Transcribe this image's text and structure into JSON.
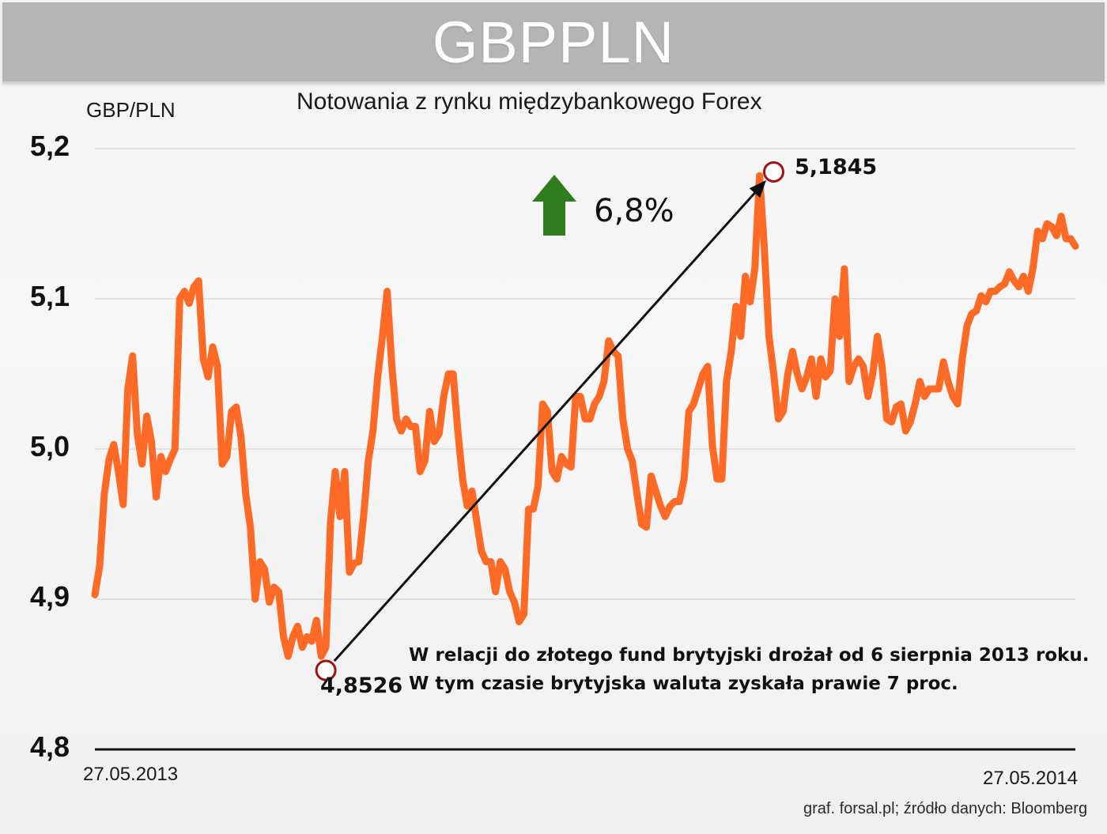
{
  "title": "GBPPLN",
  "subtitle": "Notowania z rynku międzybankowego Forex",
  "source": "graf. forsal.pl;   źródło danych: Bloomberg",
  "colors": {
    "line": "#ff6a26",
    "arrow": "#2f7d1f",
    "marker": "#a01212",
    "grid": "#d0d0d0",
    "axis": "#111111"
  },
  "chart_data": {
    "type": "line",
    "ylabel": "GBP/PLN",
    "ylim": [
      4.8,
      5.2
    ],
    "yticks": [
      "5,2",
      "5,1",
      "5,0",
      "4,9",
      "4,8"
    ],
    "ytick_values": [
      5.2,
      5.1,
      5.0,
      4.9,
      4.8
    ],
    "x_start_label": "27.05.2013",
    "x_end_label": "27.05.2014",
    "x_range": [
      "27.05.2013",
      "27.05.2014"
    ],
    "grid": true,
    "series": [
      {
        "values": [
          4.903,
          4.922,
          4.97,
          4.993,
          5.003,
          4.985,
          4.963,
          5.04,
          5.062,
          5.01,
          4.99,
          5.022,
          5.005,
          4.968,
          4.995,
          4.985,
          4.993,
          5.0,
          5.1,
          5.105,
          5.097,
          5.108,
          5.112,
          5.06,
          5.048,
          5.068,
          5.055,
          4.99,
          4.995,
          5.025,
          5.028,
          5.008,
          4.97,
          4.948,
          4.9,
          4.925,
          4.92,
          4.898,
          4.908,
          4.905,
          4.875,
          4.862,
          4.875,
          4.882,
          4.868,
          4.875,
          4.872,
          4.886,
          4.862,
          4.868,
          4.952,
          4.985,
          4.955,
          4.985,
          4.918,
          4.924,
          4.925,
          4.955,
          4.992,
          5.012,
          5.048,
          5.075,
          5.105,
          5.055,
          5.02,
          5.012,
          5.02,
          5.015,
          5.015,
          4.985,
          4.992,
          5.025,
          5.005,
          5.01,
          5.035,
          5.05,
          5.05,
          5.012,
          4.98,
          4.962,
          4.972,
          4.952,
          4.932,
          4.925,
          4.925,
          4.905,
          4.925,
          4.92,
          4.905,
          4.898,
          4.885,
          4.89,
          4.96,
          4.96,
          4.975,
          5.03,
          5.025,
          4.985,
          4.98,
          4.995,
          4.99,
          4.988,
          5.035,
          5.035,
          5.02,
          5.02,
          5.03,
          5.035,
          5.045,
          5.072,
          5.065,
          5.062,
          5.02,
          5.0,
          4.992,
          4.97,
          4.95,
          4.948,
          4.982,
          4.972,
          4.962,
          4.955,
          4.962,
          4.965,
          4.965,
          4.98,
          5.025,
          5.03,
          5.04,
          5.05,
          5.055,
          5.002,
          4.98,
          4.98,
          5.045,
          5.065,
          5.095,
          5.075,
          5.115,
          5.098,
          5.12,
          5.182,
          5.135,
          5.075,
          5.05,
          5.02,
          5.025,
          5.05,
          5.065,
          5.05,
          5.04,
          5.048,
          5.06,
          5.035,
          5.06,
          5.048,
          5.052,
          5.1,
          5.075,
          5.12,
          5.045,
          5.055,
          5.06,
          5.055,
          5.035,
          5.05,
          5.075,
          5.055,
          5.02,
          5.018,
          5.028,
          5.03,
          5.012,
          5.018,
          5.03,
          5.045,
          5.035,
          5.04,
          5.04,
          5.04,
          5.058,
          5.045,
          5.035,
          5.03,
          5.06,
          5.082,
          5.09,
          5.092,
          5.102,
          5.098,
          5.105,
          5.105,
          5.108,
          5.11,
          5.118,
          5.112,
          5.108,
          5.115,
          5.105,
          5.12,
          5.145,
          5.14,
          5.15,
          5.148,
          5.142,
          5.155,
          5.14,
          5.14,
          5.135
        ]
      }
    ],
    "annotations": {
      "low": {
        "value": 4.8526,
        "label": "4,8526",
        "index": 49
      },
      "high": {
        "value": 5.1845,
        "label": "5,1845",
        "index": 144
      },
      "change_label": "6,8%",
      "note_line1": "W relacji do złotego fund brytyjski drożał od 6 sierpnia 2013 roku.",
      "note_line2": "W tym czasie brytyjska waluta zyskała prawie 7 proc."
    }
  }
}
